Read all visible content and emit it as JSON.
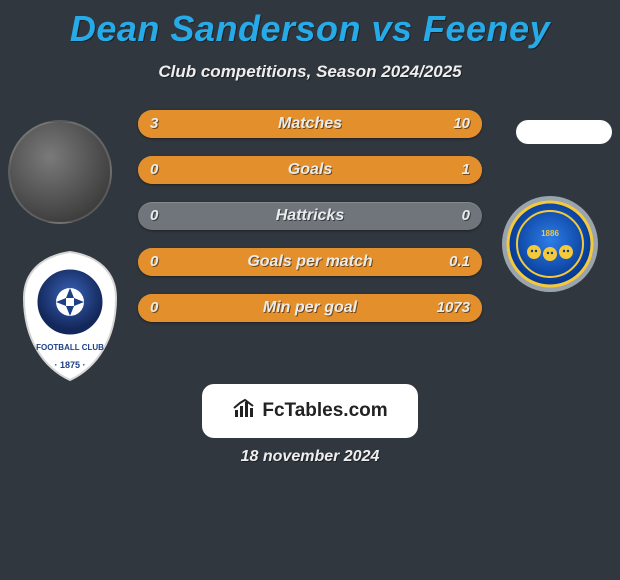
{
  "title": "Dean Sanderson vs Feeney",
  "subtitle": "Club competitions, Season 2024/2025",
  "date": "18 november 2024",
  "logo_text": "FcTables.com",
  "colors": {
    "background": "#31373e",
    "title": "#26abe8",
    "bar_base": "#6f757b",
    "bar_fill": "#e38f2b",
    "crest_left_primary": "#1c3f88",
    "crest_left_secondary": "#ffffff",
    "crest_right_primary": "#0a57c6",
    "crest_right_secondary": "#f4c93a"
  },
  "bars": [
    {
      "label": "Matches",
      "left": "3",
      "right": "10",
      "left_pct": 23,
      "right_pct": 77
    },
    {
      "label": "Goals",
      "left": "0",
      "right": "1",
      "left_pct": 0,
      "right_pct": 100
    },
    {
      "label": "Hattricks",
      "left": "0",
      "right": "0",
      "left_pct": 0,
      "right_pct": 0
    },
    {
      "label": "Goals per match",
      "left": "0",
      "right": "0.1",
      "left_pct": 0,
      "right_pct": 100
    },
    {
      "label": "Min per goal",
      "left": "0",
      "right": "1073",
      "left_pct": 0,
      "right_pct": 100
    }
  ]
}
